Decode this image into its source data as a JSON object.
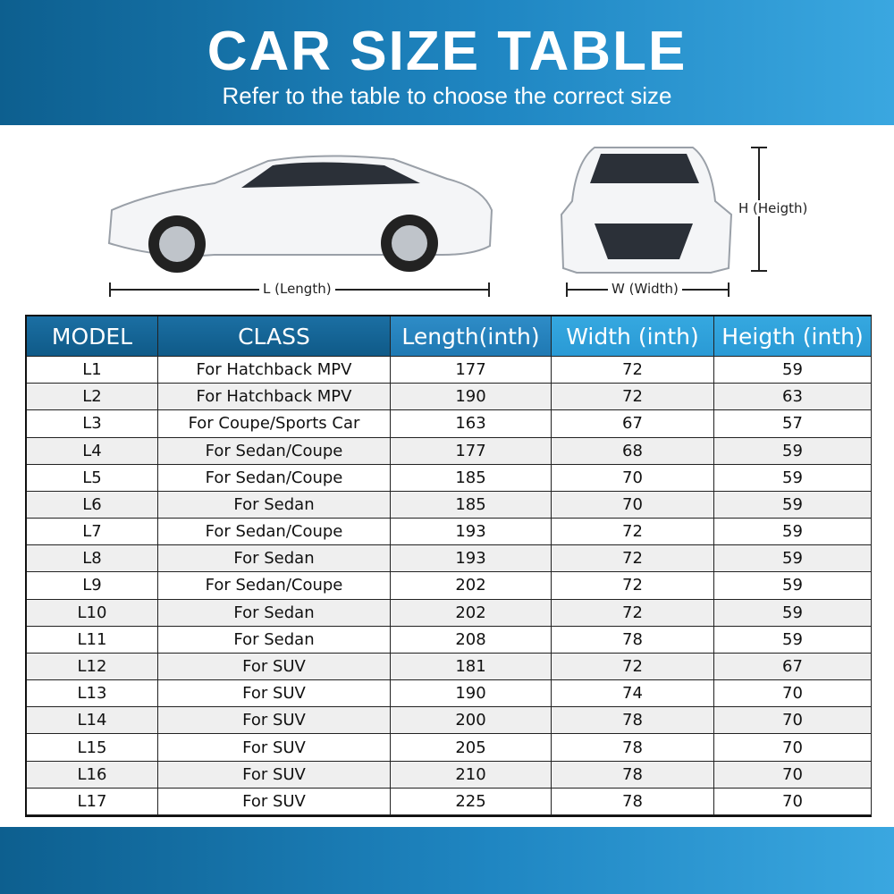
{
  "header": {
    "title": "CAR SIZE TABLE",
    "subtitle": "Refer to the table to choose the correct size"
  },
  "diagram": {
    "length_label": "L (Length)",
    "width_label": "W (Width)",
    "height_label": "H (Heigth)"
  },
  "table": {
    "columns": [
      "MODEL",
      "CLASS",
      "Length(inth)",
      "Width (inth)",
      "Heigth (inth)"
    ],
    "rows": [
      [
        "L1",
        "For Hatchback MPV",
        "177",
        "72",
        "59"
      ],
      [
        "L2",
        "For Hatchback MPV",
        "190",
        "72",
        "63"
      ],
      [
        "L3",
        "For Coupe/Sports Car",
        "163",
        "67",
        "57"
      ],
      [
        "L4",
        "For Sedan/Coupe",
        "177",
        "68",
        "59"
      ],
      [
        "L5",
        "For Sedan/Coupe",
        "185",
        "70",
        "59"
      ],
      [
        "L6",
        "For Sedan",
        "185",
        "70",
        "59"
      ],
      [
        "L7",
        "For Sedan/Coupe",
        "193",
        "72",
        "59"
      ],
      [
        "L8",
        "For Sedan",
        "193",
        "72",
        "59"
      ],
      [
        "L9",
        "For Sedan/Coupe",
        "202",
        "72",
        "59"
      ],
      [
        "L10",
        "For Sedan",
        "202",
        "72",
        "59"
      ],
      [
        "L11",
        "For Sedan",
        "208",
        "78",
        "59"
      ],
      [
        "L12",
        "For SUV",
        "181",
        "72",
        "67"
      ],
      [
        "L13",
        "For SUV",
        "190",
        "74",
        "70"
      ],
      [
        "L14",
        "For SUV",
        "200",
        "78",
        "70"
      ],
      [
        "L15",
        "For SUV",
        "205",
        "78",
        "70"
      ],
      [
        "L16",
        "For SUV",
        "210",
        "78",
        "70"
      ],
      [
        "L17",
        "For SUV",
        "225",
        "78",
        "70"
      ]
    ]
  }
}
